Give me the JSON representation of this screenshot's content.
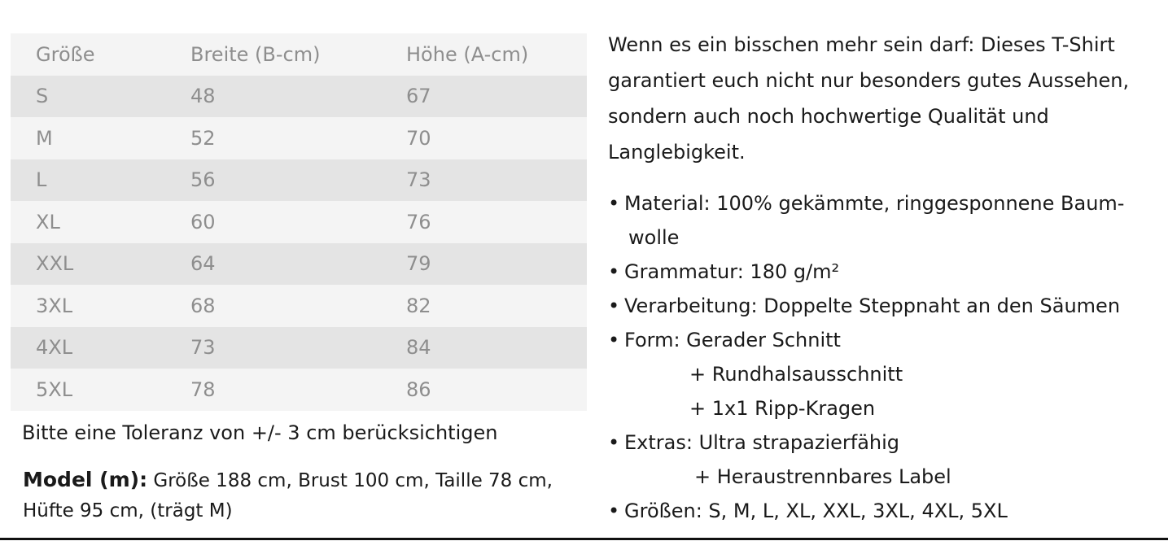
{
  "size_table": {
    "headers": [
      "Größe",
      "Breite (B-cm)",
      "Höhe (A-cm)"
    ],
    "rows": [
      [
        "S",
        "48",
        "67"
      ],
      [
        "M",
        "52",
        "70"
      ],
      [
        "L",
        "56",
        "73"
      ],
      [
        "XL",
        "60",
        "76"
      ],
      [
        "XXL",
        "64",
        "79"
      ],
      [
        "3XL",
        "68",
        "82"
      ],
      [
        "4XL",
        "73",
        "84"
      ],
      [
        "5XL",
        "78",
        "86"
      ]
    ]
  },
  "tolerance_note": "Bitte eine Toleranz von +/- 3 cm berücksichtigen",
  "model": {
    "label": "Model (m):",
    "details_line1": " Größe 188 cm, Brust 100 cm, Taille 78 cm,",
    "details_line2": "Hüfte 95 cm, (trägt M)"
  },
  "description": "Wenn es ein bisschen mehr sein darf: Dieses T-Shirt garantiert euch nicht nur besonders gutes Aussehen, sondern auch noch hochwertige Qualität und Langlebigkeit.",
  "features": {
    "bullet_char": "•",
    "material": "Material: 100% gekämmte, ringgesponnene Baum-",
    "material_cont": "wolle",
    "grammatur": "Grammatur: 180 g/m²",
    "verarbeitung": "Verarbeitung: Doppelte Steppnaht an den Säumen",
    "form": "Form: Gerader Schnitt",
    "form_sub1": "+ Rundhalsausschnitt",
    "form_sub2": "+ 1x1 Ripp-Kragen",
    "extras": "Extras: Ultra strapazierfähig",
    "extras_sub1": "+ Heraustrennbares Label",
    "groessen": "Größen:  S, M, L, XL, XXL, 3XL, 4XL, 5XL"
  },
  "colors": {
    "table_row_dark": "#e4e4e4",
    "table_row_light": "#f4f4f4",
    "table_text": "#8e8e8e",
    "body_text": "#1a1a1a"
  }
}
